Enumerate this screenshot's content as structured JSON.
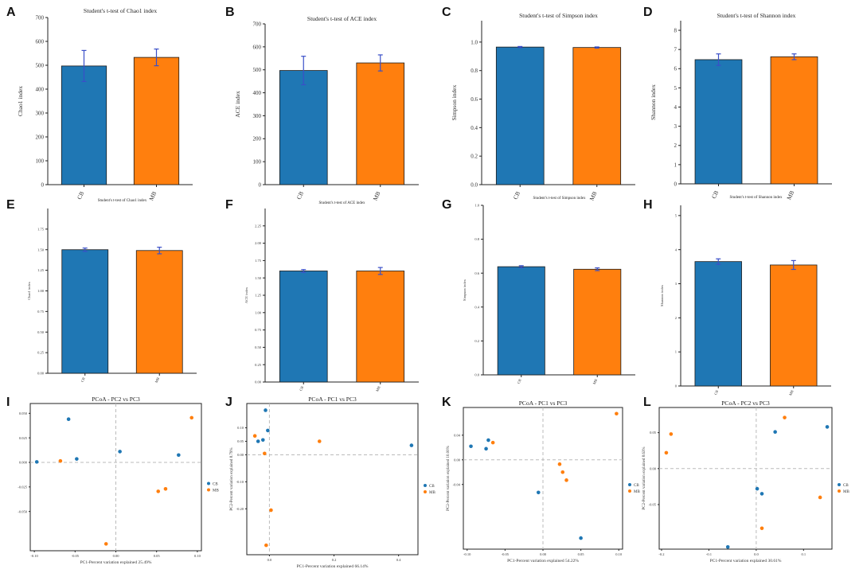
{
  "figure": {
    "colors": {
      "CB": "#1f77b4",
      "MB": "#ff7f0e",
      "error_bar": "#3a4fc8"
    }
  },
  "chart_data": [
    {
      "label": "A",
      "type": "bar",
      "title": "Student's t-test of Chao1 index",
      "ylabel": "Chao1 index",
      "categories": [
        "CB",
        "MB"
      ],
      "values": [
        497,
        533
      ],
      "errors": [
        65,
        35
      ],
      "ylim": [
        0,
        700
      ],
      "yticks": [
        0,
        100,
        200,
        300,
        400,
        500,
        600,
        700
      ]
    },
    {
      "label": "B",
      "type": "bar",
      "title": "Student's t-test of ACE index",
      "ylabel": "ACE index",
      "categories": [
        "CB",
        "MB"
      ],
      "values": [
        497,
        530
      ],
      "errors": [
        62,
        35
      ],
      "ylim": [
        0,
        700
      ],
      "yticks": [
        0,
        100,
        200,
        300,
        400,
        500,
        600,
        700
      ]
    },
    {
      "label": "C",
      "type": "bar",
      "title": "Student's t-test of Simpson index",
      "ylabel": "Simpson index",
      "categories": [
        "CB",
        "MB"
      ],
      "values": [
        0.965,
        0.962
      ],
      "errors": [
        0.004,
        0.004
      ],
      "ylim": [
        0,
        1.15
      ],
      "yticks": [
        0.0,
        0.2,
        0.4,
        0.6,
        0.8,
        1.0
      ]
    },
    {
      "label": "D",
      "type": "bar",
      "title": "Student's t-test of Shannon index",
      "ylabel": "Shannon index",
      "categories": [
        "CB",
        "MB"
      ],
      "values": [
        6.47,
        6.62
      ],
      "errors": [
        0.3,
        0.15
      ],
      "ylim": [
        0,
        8.5
      ],
      "yticks": [
        0,
        1,
        2,
        3,
        4,
        5,
        6,
        7,
        8
      ]
    },
    {
      "label": "E",
      "type": "bar",
      "title": "Student's t-test of Chao1 index",
      "ylabel": "Chao1 index",
      "categories": [
        "CB",
        "MB"
      ],
      "values": [
        1.5,
        1.49
      ],
      "errors": [
        0.02,
        0.04
      ],
      "ylim": [
        0,
        2.0
      ],
      "yticks": [
        0.0,
        0.25,
        0.5,
        0.75,
        1.0,
        1.25,
        1.5,
        1.75
      ]
    },
    {
      "label": "F",
      "type": "bar",
      "title": "Student's t-test of ACE index",
      "ylabel": "ACE index",
      "categories": [
        "CB",
        "MB"
      ],
      "values": [
        1.6,
        1.6
      ],
      "errors": [
        0.02,
        0.05
      ],
      "ylim": [
        0,
        2.5
      ],
      "yticks": [
        0.0,
        0.25,
        0.5,
        0.75,
        1.0,
        1.25,
        1.5,
        1.75,
        2.0,
        2.25
      ]
    },
    {
      "label": "G",
      "type": "bar",
      "title": "Student's t-test of Simpson index",
      "ylabel": "Simpson index",
      "categories": [
        "CB",
        "MB"
      ],
      "values": [
        0.638,
        0.623
      ],
      "errors": [
        0.006,
        0.008
      ],
      "ylim": [
        0,
        1.0
      ],
      "yticks": [
        0.0,
        0.2,
        0.4,
        0.6,
        0.8,
        1.0
      ]
    },
    {
      "label": "H",
      "type": "bar",
      "title": "Student's t-test of Shannon index",
      "ylabel": "Shannon index",
      "categories": [
        "CB",
        "MB"
      ],
      "values": [
        3.65,
        3.55
      ],
      "errors": [
        0.08,
        0.13
      ],
      "ylim": [
        0,
        5.3
      ],
      "yticks": [
        0,
        1,
        2,
        3,
        4,
        5
      ]
    },
    {
      "label": "I",
      "type": "scatter",
      "title": "PCoA - PC2 vs PC3",
      "xlabel": "PC1-Percent variation explained 25.49%",
      "ylabel": "",
      "xlim": [
        -0.105,
        0.105
      ],
      "ylim": [
        -0.09,
        0.06
      ],
      "xticks": [
        -0.1,
        -0.05,
        0.0,
        0.05,
        0.1
      ],
      "yticks": [
        0.05,
        0.025,
        0.0,
        -0.025,
        -0.05
      ],
      "legend": [
        "CB",
        "MB"
      ],
      "points": [
        {
          "x": -0.097,
          "y": 0.0005,
          "group": "CB"
        },
        {
          "x": -0.058,
          "y": 0.044,
          "group": "CB"
        },
        {
          "x": -0.048,
          "y": 0.0035,
          "group": "CB"
        },
        {
          "x": 0.005,
          "y": 0.011,
          "group": "CB"
        },
        {
          "x": 0.077,
          "y": 0.0075,
          "group": "CB"
        },
        {
          "x": -0.068,
          "y": 0.0015,
          "group": "MB"
        },
        {
          "x": -0.012,
          "y": -0.083,
          "group": "MB"
        },
        {
          "x": 0.052,
          "y": -0.0295,
          "group": "MB"
        },
        {
          "x": 0.061,
          "y": -0.027,
          "group": "MB"
        },
        {
          "x": 0.093,
          "y": 0.0455,
          "group": "MB"
        }
      ]
    },
    {
      "label": "J",
      "type": "scatter",
      "title": "PCoA - PC1 vs PC3",
      "xlabel": "PC1-Percent variation explained 66.14%",
      "ylabel": "PC2-Percent variation explained 8.79%",
      "xlim": [
        -0.07,
        0.46
      ],
      "ylim": [
        -0.37,
        0.19
      ],
      "xticks": [
        0.0,
        0.2,
        0.4
      ],
      "yticks": [
        0.1,
        0.05,
        0.0,
        -0.1,
        -0.2
      ],
      "legend": [
        "CB",
        "MB"
      ],
      "points": [
        {
          "x": -0.035,
          "y": 0.05,
          "group": "CB"
        },
        {
          "x": -0.02,
          "y": 0.055,
          "group": "CB"
        },
        {
          "x": -0.012,
          "y": 0.165,
          "group": "CB"
        },
        {
          "x": -0.005,
          "y": 0.09,
          "group": "CB"
        },
        {
          "x": 0.44,
          "y": 0.035,
          "group": "CB"
        },
        {
          "x": -0.045,
          "y": 0.07,
          "group": "MB"
        },
        {
          "x": -0.015,
          "y": 0.005,
          "group": "MB"
        },
        {
          "x": 0.005,
          "y": -0.205,
          "group": "MB"
        },
        {
          "x": 0.155,
          "y": 0.05,
          "group": "MB"
        },
        {
          "x": -0.01,
          "y": -0.335,
          "group": "MB"
        }
      ]
    },
    {
      "label": "K",
      "type": "scatter",
      "title": "PCoA - PC1 vs PC3",
      "xlabel": "PC1-Percent variation explained 54.22%",
      "ylabel": "PC2-Percent variation explained 10.00%",
      "xlim": [
        -0.105,
        0.105
      ],
      "ylim": [
        -0.145,
        0.085
      ],
      "xticks": [
        -0.1,
        -0.05,
        0.0,
        0.05,
        0.1
      ],
      "yticks": [
        0.04,
        0.0,
        -0.04
      ],
      "legend": [
        "CB",
        "MB"
      ],
      "points": [
        {
          "x": -0.095,
          "y": 0.022,
          "group": "CB"
        },
        {
          "x": -0.075,
          "y": 0.018,
          "group": "CB"
        },
        {
          "x": -0.072,
          "y": 0.032,
          "group": "CB"
        },
        {
          "x": -0.006,
          "y": -0.053,
          "group": "CB"
        },
        {
          "x": 0.05,
          "y": -0.127,
          "group": "CB"
        },
        {
          "x": -0.066,
          "y": 0.028,
          "group": "MB"
        },
        {
          "x": 0.022,
          "y": -0.007,
          "group": "MB"
        },
        {
          "x": 0.026,
          "y": -0.02,
          "group": "MB"
        },
        {
          "x": 0.031,
          "y": -0.033,
          "group": "MB"
        },
        {
          "x": 0.097,
          "y": 0.075,
          "group": "MB"
        }
      ]
    },
    {
      "label": "L",
      "type": "scatter",
      "title": "PCoA - PC2 vs PC3",
      "xlabel": "PC1-Percent variation explained 30.61%",
      "ylabel": "PC2-Percent variation explained 8.63%",
      "xlim": [
        -0.205,
        0.16
      ],
      "ylim": [
        -0.112,
        0.085
      ],
      "xticks": [
        -0.2,
        -0.1,
        0.0,
        0.1
      ],
      "yticks": [
        0.05,
        0.0,
        -0.05
      ],
      "legend": [
        "CB",
        "MB"
      ],
      "points": [
        {
          "x": -0.06,
          "y": -0.109,
          "group": "CB"
        },
        {
          "x": 0.002,
          "y": -0.028,
          "group": "CB"
        },
        {
          "x": 0.012,
          "y": -0.035,
          "group": "CB"
        },
        {
          "x": 0.04,
          "y": 0.051,
          "group": "CB"
        },
        {
          "x": 0.15,
          "y": 0.058,
          "group": "CB"
        },
        {
          "x": -0.18,
          "y": 0.048,
          "group": "MB"
        },
        {
          "x": -0.19,
          "y": 0.022,
          "group": "MB"
        },
        {
          "x": 0.012,
          "y": -0.083,
          "group": "MB"
        },
        {
          "x": 0.06,
          "y": 0.071,
          "group": "MB"
        },
        {
          "x": 0.135,
          "y": -0.04,
          "group": "MB"
        }
      ]
    }
  ]
}
